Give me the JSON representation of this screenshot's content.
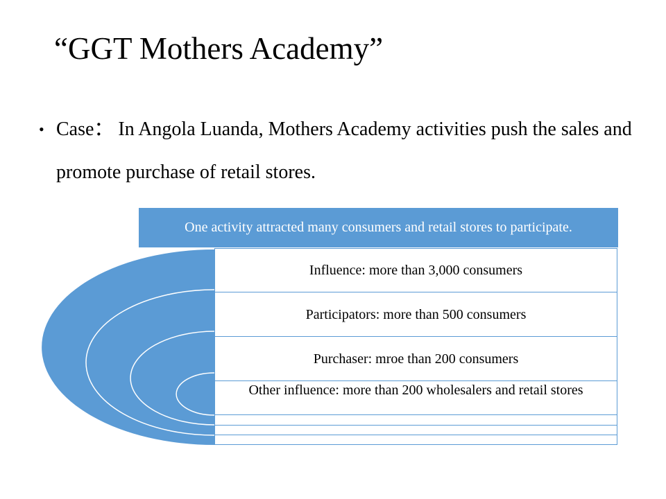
{
  "title": "“GGT Mothers Academy”",
  "bullet": {
    "marker": "•",
    "text": "Case： In Angola Luanda, Mothers Academy activities push the sales and promote purchase of retail stores."
  },
  "diagram": {
    "header": "One activity attracted many consumers and retail stores to participate.",
    "rows": [
      "Influence: more than 3,000 consumers",
      "Participators: more than 500 consumers",
      "Purchaser: mroe than 200 consumers",
      "Other influence: more than 200 wholesalers and retail stores",
      "",
      "",
      ""
    ],
    "fill_color": "#5b9bd5"
  }
}
